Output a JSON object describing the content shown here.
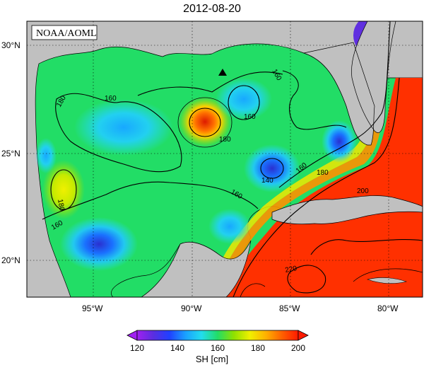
{
  "title": "2012-08-20",
  "credit": "NOAA/AOML",
  "lat_ticks": [
    "30°N",
    "25°N",
    "20°N"
  ],
  "lon_ticks": [
    "95°W",
    "90°W",
    "85°W",
    "80°W"
  ],
  "contour_labels": [
    "160",
    "160",
    "180",
    "160",
    "180",
    "180",
    "140",
    "160",
    "180",
    "160",
    "200",
    "220",
    "160"
  ],
  "colorbar": {
    "label": "SH [cm]",
    "ticks": [
      "120",
      "140",
      "160",
      "180",
      "200"
    ],
    "colors": [
      "#a020f0",
      "#5a2ee0",
      "#2040ff",
      "#1aa0ff",
      "#22ddee",
      "#22dd66",
      "#8fe000",
      "#f0f000",
      "#ffb000",
      "#ff6000",
      "#ff1a00"
    ]
  },
  "colors": {
    "land": "#c0c0c0",
    "coast": "#000000"
  },
  "marker": "triangle-marker"
}
